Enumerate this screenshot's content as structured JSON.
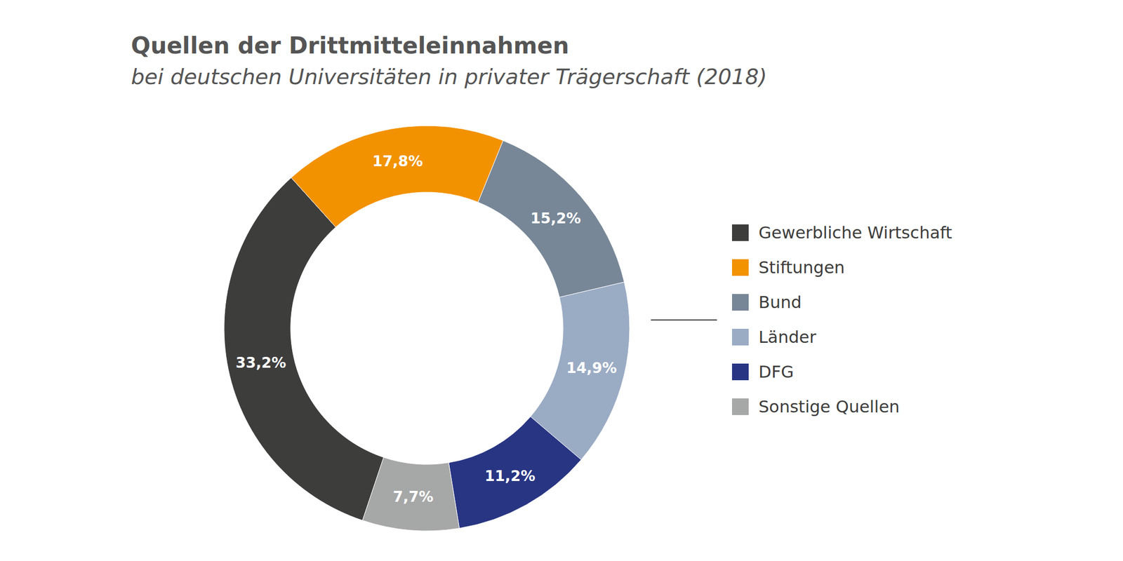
{
  "chart_data": {
    "type": "donut",
    "title": "Quellen der Drittmitteleinnahmen",
    "subtitle": "bei deutschen Universitäten in privater Trägerschaft (2018)",
    "categories": [
      "Gewerbliche Wirtschaft",
      "Stiftungen",
      "Bund",
      "Länder",
      "DFG",
      "Sonstige Quellen"
    ],
    "values": [
      33.2,
      17.8,
      15.2,
      14.9,
      11.2,
      7.7
    ],
    "value_labels": [
      "33,2%",
      "17,8%",
      "15,2%",
      "14,9%",
      "11,2%",
      "7,7%"
    ],
    "colors": [
      "#3d3d3c",
      "#f29200",
      "#778797",
      "#9aabc4",
      "#283583",
      "#a6a7a7"
    ],
    "data_labels": true,
    "legend": "right"
  }
}
